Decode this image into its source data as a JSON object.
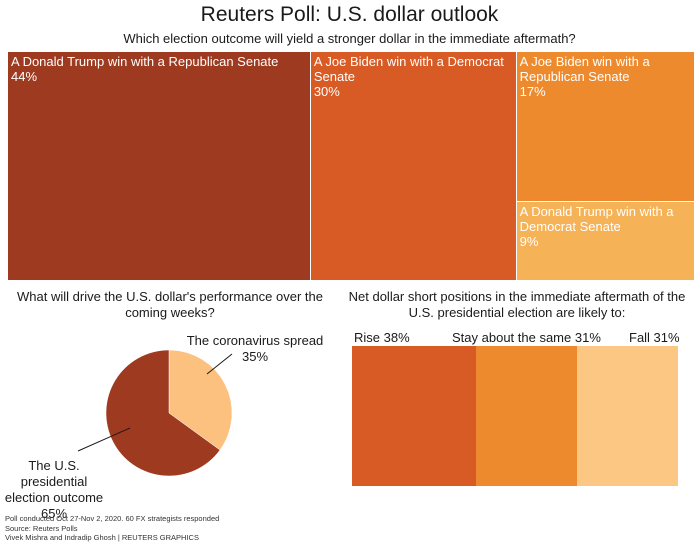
{
  "title": "Reuters Poll: U.S. dollar outlook",
  "subtitle": "Which election outcome will yield a stronger dollar in the immediate aftermath?",
  "chart_data": [
    {
      "type": "treemap",
      "title": "Which election outcome will yield a stronger dollar in the immediate aftermath?",
      "categories": [
        "A Donald Trump win with a Republican Senate",
        "A Joe Biden win with a Democrat Senate",
        "A Joe Biden win with a Republican Senate",
        "A Donald Trump win with a Democrat Senate"
      ],
      "values": [
        44,
        30,
        17,
        9
      ],
      "value_labels": [
        "44%",
        "30%",
        "17%",
        "9%"
      ],
      "colors": [
        "#9e3a20",
        "#d85a24",
        "#ee8a2e",
        "#f6b257"
      ]
    },
    {
      "type": "pie",
      "title": "What will drive the U.S. dollar's performance over the coming weeks?",
      "categories": [
        "The coronavirus spread",
        "The U.S. presidential election outcome"
      ],
      "values": [
        35,
        65
      ],
      "value_labels": [
        "35%",
        "65%"
      ],
      "colors": [
        "#fcc07f",
        "#9e3a20"
      ]
    },
    {
      "type": "bar",
      "orientation": "stacked-horizontal",
      "title": "Net dollar short positions in the immediate aftermath of the U.S. presidential election are likely to:",
      "categories": [
        "Rise",
        "Stay about the same",
        "Fall"
      ],
      "values": [
        38,
        31,
        31
      ],
      "value_labels": [
        "38%",
        "31%",
        "31%"
      ],
      "colors": [
        "#d85a24",
        "#ee8a2e",
        "#fcc782"
      ]
    }
  ],
  "pie_labels": {
    "covid_line1": "The coronavirus spread",
    "covid_pct": "35%",
    "election_line1": "The U.S. presidential",
    "election_line2": "election outcome",
    "election_pct": "65%"
  },
  "bar_labels": {
    "rise": "Rise 38%",
    "same": "Stay about the same 31%",
    "fall": "Fall 31%"
  },
  "footer": {
    "line1": "Poll conducted Oct 27-Nov 2, 2020. 60 FX strategists responded",
    "line2": "Source: Reuters Polls",
    "line3": "Vivek Mishra and Indradip Ghosh | REUTERS GRAPHICS"
  }
}
